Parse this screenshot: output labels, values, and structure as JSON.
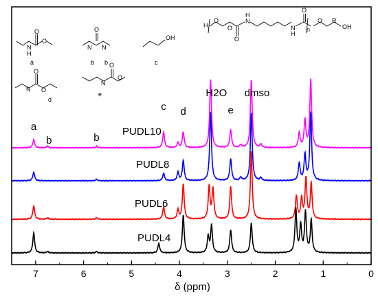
{
  "chart_data": {
    "type": "line",
    "title": "",
    "xlabel": "δ (ppm)",
    "ylabel": "",
    "xlim": [
      7.5,
      0
    ],
    "x_ticks": [
      "7",
      "6",
      "5",
      "4",
      "3",
      "2",
      "1",
      "0"
    ],
    "x_tick_values": [
      7,
      6,
      5,
      4,
      3,
      2,
      1,
      0
    ],
    "grid": false,
    "legend": "none",
    "series": [
      {
        "name": "PUDL10",
        "color": "#ff00ff",
        "peaks": [
          {
            "ppm": 7.04,
            "height": 0.3
          },
          {
            "ppm": 6.75,
            "height": 0.06
          },
          {
            "ppm": 5.73,
            "height": 0.05
          },
          {
            "ppm": 4.33,
            "height": 0.58
          },
          {
            "ppm": 4.03,
            "height": 0.18
          },
          {
            "ppm": 3.92,
            "height": 0.58
          },
          {
            "ppm": 3.35,
            "height": 2.5
          },
          {
            "ppm": 2.93,
            "height": 0.65
          },
          {
            "ppm": 2.72,
            "height": 0.1
          },
          {
            "ppm": 2.5,
            "height": 2.5
          },
          {
            "ppm": 2.3,
            "height": 0.12
          },
          {
            "ppm": 1.5,
            "height": 0.55
          },
          {
            "ppm": 1.38,
            "height": 1.0
          },
          {
            "ppm": 1.26,
            "height": 2.5
          }
        ]
      },
      {
        "name": "PUDL8",
        "color": "#0000ff",
        "peaks": [
          {
            "ppm": 7.04,
            "height": 0.32
          },
          {
            "ppm": 5.73,
            "height": 0.05
          },
          {
            "ppm": 4.33,
            "height": 0.28
          },
          {
            "ppm": 4.03,
            "height": 0.3
          },
          {
            "ppm": 3.92,
            "height": 0.75
          },
          {
            "ppm": 3.35,
            "height": 2.5
          },
          {
            "ppm": 2.93,
            "height": 0.8
          },
          {
            "ppm": 2.72,
            "height": 0.12
          },
          {
            "ppm": 2.5,
            "height": 2.5
          },
          {
            "ppm": 2.3,
            "height": 0.1
          },
          {
            "ppm": 1.5,
            "height": 0.65
          },
          {
            "ppm": 1.38,
            "height": 0.95
          },
          {
            "ppm": 1.26,
            "height": 2.5
          }
        ]
      },
      {
        "name": "PUDL6",
        "color": "#ff0000",
        "peaks": [
          {
            "ppm": 7.04,
            "height": 0.5
          },
          {
            "ppm": 6.75,
            "height": 0.05
          },
          {
            "ppm": 5.73,
            "height": 0.05
          },
          {
            "ppm": 4.33,
            "height": 0.45
          },
          {
            "ppm": 4.03,
            "height": 0.33
          },
          {
            "ppm": 3.92,
            "height": 1.3
          },
          {
            "ppm": 3.38,
            "height": 1.2
          },
          {
            "ppm": 3.3,
            "height": 1.1
          },
          {
            "ppm": 2.93,
            "height": 1.2
          },
          {
            "ppm": 2.5,
            "height": 2.5
          },
          {
            "ppm": 1.56,
            "height": 0.85
          },
          {
            "ppm": 1.45,
            "height": 0.75
          },
          {
            "ppm": 1.36,
            "height": 1.5
          },
          {
            "ppm": 1.25,
            "height": 1.3
          }
        ]
      },
      {
        "name": "PUDL4",
        "color": "#000000",
        "peaks": [
          {
            "ppm": 7.04,
            "height": 0.75
          },
          {
            "ppm": 6.75,
            "height": 0.05
          },
          {
            "ppm": 5.73,
            "height": 0.05
          },
          {
            "ppm": 4.43,
            "height": 0.35
          },
          {
            "ppm": 3.92,
            "height": 1.4
          },
          {
            "ppm": 3.4,
            "height": 0.6
          },
          {
            "ppm": 3.33,
            "height": 1.0
          },
          {
            "ppm": 2.93,
            "height": 0.85
          },
          {
            "ppm": 2.5,
            "height": 1.1
          },
          {
            "ppm": 1.57,
            "height": 1.6
          },
          {
            "ppm": 1.47,
            "height": 1.0
          },
          {
            "ppm": 1.37,
            "height": 1.5
          },
          {
            "ppm": 1.25,
            "height": 1.2
          }
        ]
      }
    ],
    "annotations": [
      {
        "text": "a",
        "ppm": 7.04
      },
      {
        "text": "b",
        "ppm": 6.75
      },
      {
        "text": "b",
        "ppm": 5.73
      },
      {
        "text": "c",
        "ppm": 4.33
      },
      {
        "text": "d",
        "ppm": 3.92
      },
      {
        "text": "e",
        "ppm": 2.93
      },
      {
        "text": "H2O",
        "ppm": 3.35
      },
      {
        "text": "dmso",
        "ppm": 2.5
      }
    ],
    "structure_labels": [
      "a",
      "b",
      "b",
      "c",
      "d",
      "e"
    ],
    "structure_atoms": [
      "N",
      "H",
      "O",
      "C",
      "n",
      "R",
      "OH"
    ]
  }
}
